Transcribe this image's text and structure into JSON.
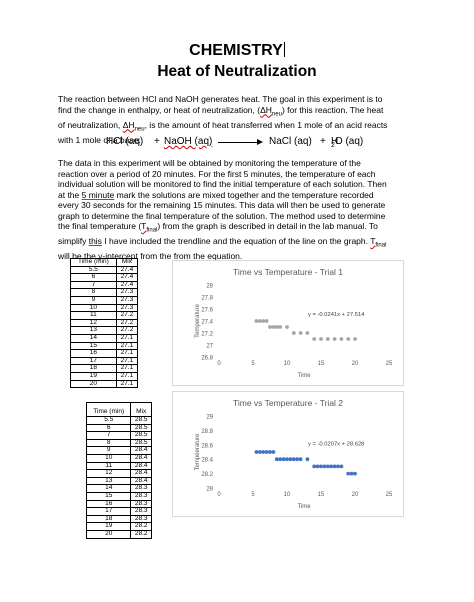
{
  "header": {
    "title": "CHEMISTRY",
    "subtitle": "Heat of Neutralization"
  },
  "intro": {
    "line1": "The reaction between HCl and NaOH generates heat.  The goal in this experiment is to",
    "line2a": "find the change in enthalpy, or heat of neutralization, (",
    "line2_dh": "ΔH",
    "line2_sub": "neu",
    "line2b": ") for this reaction.  The heat",
    "line3a": "of neutralization, ",
    "line3_dh": "ΔH",
    "line3_sub": "neu",
    "line3b": ", is the amount of heat transferred when 1 mole of an acid reacts",
    "line4": "with 1 mole of a base."
  },
  "equation": {
    "reactant1": "HCl (aq)",
    "plus1": "+",
    "reactant2": "NaOH (aq)",
    "product1": "NaCl (aq)",
    "plus2": "+",
    "product2_a": "H",
    "product2_sub": "2",
    "product2_b": "O (aq)"
  },
  "body": {
    "l1": "The data in this experiment will be obtained by monitoring the temperature of the",
    "l2": "reaction over a period of 20 minutes.  For the first 5 minutes, the temperature of each",
    "l3": "individual solution will be monitored to find the initial temperature of each solution.  Then",
    "l4a": "at the ",
    "l4_link": "5 minute",
    "l4b": " mark the solutions are mixed together and the temperature recorded",
    "l5": "every 30 seconds for the remaining 15 minutes.  This data will then be used to generate",
    "l6": "graph to determine the final temperature of the solution.  The method used to determine",
    "l7a": "the final temperature (",
    "l7_t": "T",
    "l7_sub": "final",
    "l7b": ") from the graph is described in detail in the lab manual.  To",
    "l8a": "simplify ",
    "l8_this": "this",
    "l8b": " I have included the trendline and the equation of the line on the graph.  ",
    "l8_t": "T",
    "l8_sub": "final",
    "l9": "will be the y-intercept from the from the equation."
  },
  "table1": {
    "headers": [
      "Time (min)",
      "Mix"
    ],
    "rows": [
      [
        "5.5",
        "27.4"
      ],
      [
        "6",
        "27.4"
      ],
      [
        "7",
        "27.4"
      ],
      [
        "8",
        "27.3"
      ],
      [
        "9",
        "27.3"
      ],
      [
        "10",
        "27.3"
      ],
      [
        "11",
        "27.2"
      ],
      [
        "12",
        "27.2"
      ],
      [
        "13",
        "27.2"
      ],
      [
        "14",
        "27.1"
      ],
      [
        "15",
        "27.1"
      ],
      [
        "16",
        "27.1"
      ],
      [
        "17",
        "27.1"
      ],
      [
        "18",
        "27.1"
      ],
      [
        "19",
        "27.1"
      ],
      [
        "20",
        "27.1"
      ]
    ]
  },
  "table2": {
    "headers": [
      "Time (min)",
      "Mix"
    ],
    "rows": [
      [
        "5.5",
        "28.5"
      ],
      [
        "6",
        "28.5"
      ],
      [
        "7",
        "28.5"
      ],
      [
        "8",
        "28.5"
      ],
      [
        "9",
        "28.4"
      ],
      [
        "10",
        "28.4"
      ],
      [
        "11",
        "28.4"
      ],
      [
        "12",
        "28.4"
      ],
      [
        "13",
        "28.4"
      ],
      [
        "14",
        "28.3"
      ],
      [
        "15",
        "28.3"
      ],
      [
        "16",
        "28.3"
      ],
      [
        "17",
        "28.3"
      ],
      [
        "18",
        "28.3"
      ],
      [
        "19",
        "28.2"
      ],
      [
        "20",
        "28.2"
      ]
    ]
  },
  "chart_data": [
    {
      "type": "scatter",
      "title": "Time vs Temperature - Trial 1",
      "xlabel": "Time",
      "ylabel": "Temperature",
      "xlim": [
        0,
        25
      ],
      "ylim": [
        26.8,
        28
      ],
      "xticks": [
        0,
        5,
        10,
        15,
        20,
        25
      ],
      "yticks": [
        26.8,
        27,
        27.2,
        27.4,
        27.6,
        27.8,
        28
      ],
      "trendline_label": "y = -0.0241x + 27.514",
      "trendline": {
        "slope": -0.0241,
        "intercept": 27.514
      },
      "marker_color": "#a6a6a6",
      "grid": false,
      "x": [
        5.5,
        6,
        6.5,
        7,
        7.5,
        8,
        8.5,
        9,
        10,
        11,
        12,
        13,
        14,
        15,
        16,
        17,
        18,
        19,
        20
      ],
      "y": [
        27.4,
        27.4,
        27.4,
        27.4,
        27.3,
        27.3,
        27.3,
        27.3,
        27.3,
        27.2,
        27.2,
        27.2,
        27.1,
        27.1,
        27.1,
        27.1,
        27.1,
        27.1,
        27.1
      ]
    },
    {
      "type": "scatter",
      "title": "Time vs Temperature - Trial 2",
      "xlabel": "Time",
      "ylabel": "Tempeerature",
      "xlim": [
        0,
        25
      ],
      "ylim": [
        28,
        29
      ],
      "xticks": [
        0,
        5,
        10,
        15,
        20,
        25
      ],
      "yticks": [
        28,
        28.2,
        28.4,
        28.6,
        28.8,
        29
      ],
      "trendline_label": "y = -0.0207x + 28.628",
      "trendline": {
        "slope": -0.0207,
        "intercept": 28.628
      },
      "marker_color": "#4472c4",
      "grid": false,
      "x": [
        5.5,
        6,
        6.5,
        7,
        7.5,
        8,
        8.5,
        9,
        9.5,
        10,
        10.5,
        11,
        11.5,
        12,
        13,
        14,
        14.5,
        15,
        15.5,
        16,
        16.5,
        17,
        17.5,
        18,
        19,
        19.5,
        20
      ],
      "y": [
        28.5,
        28.5,
        28.5,
        28.5,
        28.5,
        28.5,
        28.4,
        28.4,
        28.4,
        28.4,
        28.4,
        28.4,
        28.4,
        28.4,
        28.4,
        28.3,
        28.3,
        28.3,
        28.3,
        28.3,
        28.3,
        28.3,
        28.3,
        28.3,
        28.2,
        28.2,
        28.2
      ]
    }
  ]
}
